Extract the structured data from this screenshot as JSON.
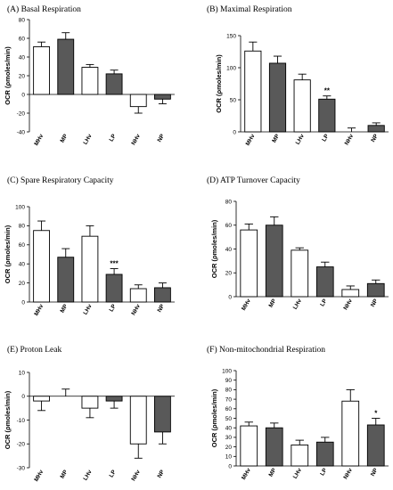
{
  "figure_title": "",
  "colors": {
    "open_bar": "#ffffff",
    "filled_bar": "#595959",
    "stroke": "#000000"
  },
  "chart_data": [
    {
      "type": "bar",
      "title": "(A) Basal Respiration",
      "ylabel": "OCR (ρmoles/min)",
      "categories": [
        "MHv",
        "MP",
        "LHv",
        "LP",
        "NHv",
        "NP"
      ],
      "fills": [
        "open",
        "filled",
        "open",
        "filled",
        "open",
        "filled"
      ],
      "values": [
        51,
        59,
        29,
        22,
        -13,
        -5
      ],
      "errors": [
        5,
        7,
        3,
        4,
        7,
        5
      ],
      "ylim": [
        -40,
        80
      ],
      "yticks": [
        -40,
        -20,
        0,
        20,
        40,
        60,
        80
      ],
      "significance": [
        "",
        "",
        "",
        "",
        "",
        ""
      ]
    },
    {
      "type": "bar",
      "title": "(B) Maximal Respiration",
      "ylabel": "OCR (ρmoles/min)",
      "categories": [
        "MHv",
        "MP",
        "LHv",
        "LP",
        "NHv",
        "NP"
      ],
      "fills": [
        "open",
        "filled",
        "open",
        "filled",
        "open",
        "filled"
      ],
      "values": [
        126,
        107,
        81,
        51,
        0,
        10
      ],
      "errors": [
        14,
        11,
        9,
        5,
        6,
        4
      ],
      "ylim": [
        0,
        150
      ],
      "yticks": [
        0,
        50,
        100,
        150
      ],
      "significance": [
        "",
        "",
        "",
        "**",
        "",
        ""
      ]
    },
    {
      "type": "bar",
      "title": "(C) Spare Respiratory Capacity",
      "ylabel": "OCR (ρmoles/min)",
      "categories": [
        "MHv",
        "MP",
        "LHv",
        "LP",
        "NHv",
        "NP"
      ],
      "fills": [
        "open",
        "filled",
        "open",
        "filled",
        "open",
        "filled"
      ],
      "values": [
        75,
        47,
        69,
        29,
        14,
        15
      ],
      "errors": [
        10,
        9,
        11,
        6,
        4,
        5
      ],
      "ylim": [
        0,
        100
      ],
      "yticks": [
        0,
        20,
        40,
        60,
        80,
        100
      ],
      "significance": [
        "",
        "",
        "",
        "***",
        "",
        ""
      ]
    },
    {
      "type": "bar",
      "title": "(D) ATP Turnover Capacity",
      "ylabel": "OCR (ρmoles/min)",
      "categories": [
        "MHv",
        "MP",
        "LHv",
        "LP",
        "NHv",
        "NP"
      ],
      "fills": [
        "open",
        "filled",
        "open",
        "filled",
        "open",
        "filled"
      ],
      "values": [
        56,
        60,
        39,
        25,
        6,
        11
      ],
      "errors": [
        5,
        7,
        2,
        4,
        3,
        3
      ],
      "ylim": [
        0,
        80
      ],
      "yticks": [
        0,
        20,
        40,
        60,
        80
      ],
      "significance": [
        "",
        "",
        "",
        "",
        "",
        ""
      ]
    },
    {
      "type": "bar",
      "title": "(E) Proton Leak",
      "ylabel": "OCR (ρmoles/min)",
      "categories": [
        "MHv",
        "MP",
        "LHv",
        "LP",
        "NHv",
        "NP"
      ],
      "fills": [
        "open",
        "filled",
        "open",
        "filled",
        "open",
        "filled"
      ],
      "values": [
        -2,
        0,
        -5,
        -2,
        -20,
        -15
      ],
      "errors": [
        4,
        3,
        4,
        3,
        6,
        5
      ],
      "ylim": [
        -30,
        10
      ],
      "yticks": [
        -30,
        -20,
        -10,
        0,
        10
      ],
      "significance": [
        "",
        "",
        "",
        "",
        "",
        ""
      ]
    },
    {
      "type": "bar",
      "title": "(F) Non-mitochondrial Respiration",
      "ylabel": "OCR (ρmoles/min)",
      "categories": [
        "MHv",
        "MP",
        "LHv",
        "LP",
        "NHv",
        "NP"
      ],
      "fills": [
        "open",
        "filled",
        "open",
        "filled",
        "open",
        "filled"
      ],
      "values": [
        42,
        40,
        22,
        25,
        68,
        43
      ],
      "errors": [
        4,
        5,
        5,
        5,
        12,
        7
      ],
      "ylim": [
        0,
        100
      ],
      "yticks": [
        0,
        10,
        20,
        30,
        40,
        50,
        60,
        70,
        80,
        90,
        100
      ],
      "significance": [
        "",
        "",
        "",
        "",
        "",
        "*"
      ]
    }
  ]
}
